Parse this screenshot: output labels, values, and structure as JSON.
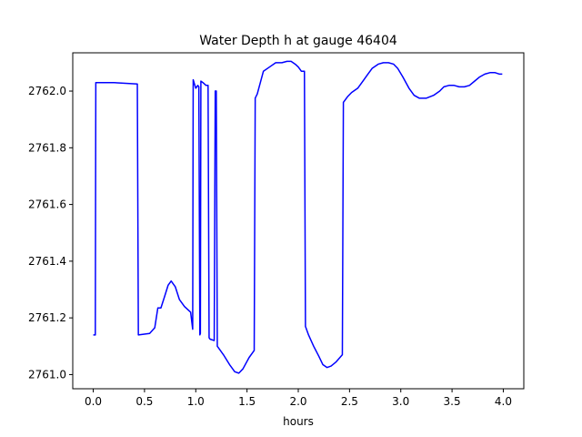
{
  "chart_data": {
    "type": "line",
    "title": "Water Depth h at gauge 46404",
    "xlabel": "hours",
    "ylabel": "",
    "xlim": [
      -0.2,
      4.2
    ],
    "ylim": [
      2760.95,
      2762.135
    ],
    "xticks": [
      0.0,
      0.5,
      1.0,
      1.5,
      2.0,
      2.5,
      3.0,
      3.5,
      4.0
    ],
    "xtick_labels": [
      "0.0",
      "0.5",
      "1.0",
      "1.5",
      "2.0",
      "2.5",
      "3.0",
      "3.5",
      "4.0"
    ],
    "yticks": [
      2761.0,
      2761.2,
      2761.4,
      2761.6,
      2761.8,
      2762.0
    ],
    "ytick_labels": [
      "2761.0",
      "2761.2",
      "2761.4",
      "2761.6",
      "2761.8",
      "2762.0"
    ],
    "grid": false,
    "series": [
      {
        "color": "#0000ff",
        "x": [
          0.0,
          0.02,
          0.025,
          0.2,
          0.43,
          0.44,
          0.55,
          0.6,
          0.63,
          0.66,
          0.7,
          0.73,
          0.76,
          0.8,
          0.84,
          0.89,
          0.95,
          0.97,
          0.975,
          1.0,
          1.02,
          1.03,
          1.04,
          1.045,
          1.05,
          1.07,
          1.1,
          1.12,
          1.13,
          1.14,
          1.18,
          1.19,
          1.2,
          1.21,
          1.22,
          1.27,
          1.33,
          1.38,
          1.42,
          1.46,
          1.52,
          1.57,
          1.58,
          1.6,
          1.63,
          1.66,
          1.72,
          1.78,
          1.84,
          1.89,
          1.93,
          1.97,
          2.0,
          2.03,
          2.06,
          2.07,
          2.1,
          2.15,
          2.2,
          2.24,
          2.28,
          2.32,
          2.37,
          2.43,
          2.44,
          2.48,
          2.52,
          2.58,
          2.63,
          2.68,
          2.72,
          2.78,
          2.83,
          2.88,
          2.93,
          2.97,
          3.02,
          3.08,
          3.13,
          3.18,
          3.25,
          3.32,
          3.38,
          3.42,
          3.47,
          3.52,
          3.57,
          3.62,
          3.67,
          3.72,
          3.77,
          3.82,
          3.87,
          3.92,
          3.96,
          3.99
        ],
        "y": [
          2761.14,
          2761.14,
          2762.03,
          2762.03,
          2762.025,
          2761.14,
          2761.145,
          2761.165,
          2761.235,
          2761.235,
          2761.28,
          2761.315,
          2761.33,
          2761.31,
          2761.265,
          2761.24,
          2761.22,
          2761.16,
          2762.04,
          2762.01,
          2762.02,
          2762.015,
          2761.14,
          2761.145,
          2762.035,
          2762.03,
          2762.02,
          2762.02,
          2761.13,
          2761.125,
          2761.12,
          2762.0,
          2762.0,
          2761.1,
          2761.095,
          2761.07,
          2761.035,
          2761.01,
          2761.005,
          2761.02,
          2761.06,
          2761.085,
          2761.975,
          2761.99,
          2762.03,
          2762.07,
          2762.085,
          2762.1,
          2762.1,
          2762.105,
          2762.105,
          2762.095,
          2762.085,
          2762.07,
          2762.07,
          2761.17,
          2761.14,
          2761.1,
          2761.065,
          2761.035,
          2761.025,
          2761.03,
          2761.045,
          2761.07,
          2761.96,
          2761.98,
          2761.995,
          2762.01,
          2762.035,
          2762.06,
          2762.08,
          2762.095,
          2762.1,
          2762.1,
          2762.095,
          2762.08,
          2762.05,
          2762.01,
          2761.985,
          2761.975,
          2761.975,
          2761.985,
          2762.0,
          2762.015,
          2762.02,
          2762.02,
          2762.015,
          2762.015,
          2762.02,
          2762.035,
          2762.05,
          2762.06,
          2762.065,
          2762.065,
          2762.06,
          2762.06
        ]
      }
    ]
  }
}
